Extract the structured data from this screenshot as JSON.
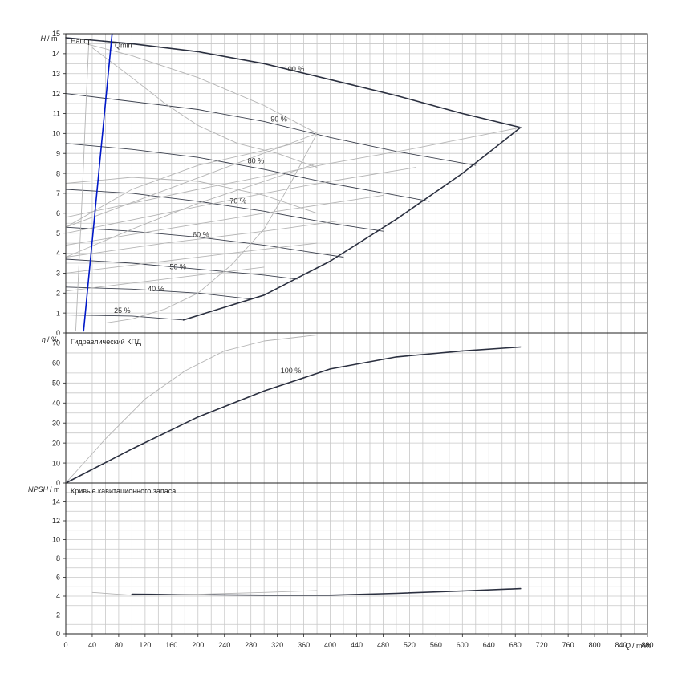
{
  "chart_data": [
    {
      "type": "line",
      "title": "Напор",
      "ylabel_symbol": "H",
      "ylabel_unit": "/ m",
      "xlim": [
        0,
        880
      ],
      "ylim": [
        0,
        15
      ],
      "yticks": [
        0,
        1,
        2,
        3,
        4,
        5,
        6,
        7,
        8,
        9,
        10,
        11,
        12,
        13,
        14,
        15
      ],
      "grid": true,
      "colors": {
        "main": "#2b3040",
        "sub": "#3a3f4c",
        "light": "#b4b4b4",
        "qmin": "#0018c8"
      },
      "series": [
        {
          "name": "100 %",
          "style": "main",
          "x": [
            0,
            100,
            200,
            300,
            400,
            500,
            600,
            688
          ],
          "y": [
            14.8,
            14.5,
            14.1,
            13.5,
            12.7,
            11.9,
            11.0,
            10.3
          ]
        },
        {
          "name": "90 %",
          "style": "sub",
          "x": [
            0,
            100,
            200,
            300,
            400,
            500,
            620
          ],
          "y": [
            12.0,
            11.6,
            11.2,
            10.6,
            9.8,
            9.1,
            8.4
          ]
        },
        {
          "name": "80 %",
          "style": "sub",
          "x": [
            0,
            100,
            200,
            300,
            400,
            500,
            550
          ],
          "y": [
            9.5,
            9.2,
            8.8,
            8.2,
            7.5,
            6.9,
            6.6
          ]
        },
        {
          "name": "70 %",
          "style": "sub",
          "x": [
            0,
            100,
            200,
            300,
            400,
            480
          ],
          "y": [
            7.2,
            7.0,
            6.6,
            6.1,
            5.5,
            5.1
          ]
        },
        {
          "name": "60 %",
          "style": "sub",
          "x": [
            0,
            100,
            200,
            300,
            420
          ],
          "y": [
            5.3,
            5.1,
            4.8,
            4.4,
            3.8
          ]
        },
        {
          "name": "50 %",
          "style": "sub",
          "x": [
            0,
            100,
            200,
            300,
            350
          ],
          "y": [
            3.7,
            3.5,
            3.2,
            2.9,
            2.7
          ]
        },
        {
          "name": "40 %",
          "style": "sub",
          "x": [
            0,
            100,
            200,
            280
          ],
          "y": [
            2.3,
            2.2,
            2.0,
            1.7
          ]
        },
        {
          "name": "25 %",
          "style": "sub",
          "x": [
            0,
            100,
            178
          ],
          "y": [
            0.9,
            0.85,
            0.65
          ]
        },
        {
          "name": "",
          "style": "main",
          "x": [
            178,
            300,
            400,
            500,
            600,
            688
          ],
          "y": [
            0.65,
            1.9,
            3.6,
            5.7,
            8.0,
            10.3
          ]
        },
        {
          "name": "",
          "style": "light",
          "x": [
            30,
            100,
            200,
            300,
            380
          ],
          "y": [
            14.5,
            13.9,
            12.8,
            11.4,
            10.0
          ]
        },
        {
          "name": "",
          "style": "light",
          "x": [
            380,
            340,
            300,
            250,
            200,
            150,
            100,
            60
          ],
          "y": [
            10.0,
            7.5,
            5.2,
            3.4,
            2.0,
            1.2,
            0.7,
            0.5
          ]
        },
        {
          "name": "",
          "style": "light",
          "x": [
            35,
            30,
            25,
            20,
            15
          ],
          "y": [
            14.7,
            11.0,
            7.0,
            3.5,
            0.1
          ]
        },
        {
          "name": "",
          "style": "light",
          "x": [
            0,
            380
          ],
          "y": [
            5.3,
            10.0
          ]
        },
        {
          "name": "",
          "style": "light",
          "x": [
            0,
            200,
            400,
            520,
            688
          ],
          "y": [
            5.8,
            7.2,
            8.5,
            9.2,
            10.3
          ]
        },
        {
          "name": "",
          "style": "light",
          "x": [
            0,
            150,
            300,
            400,
            530
          ],
          "y": [
            5.0,
            6.0,
            7.0,
            7.6,
            8.3
          ]
        },
        {
          "name": "",
          "style": "light",
          "x": [
            0,
            150,
            300,
            420,
            480
          ],
          "y": [
            4.4,
            5.2,
            6.0,
            6.6,
            6.9
          ]
        },
        {
          "name": "",
          "style": "light",
          "x": [
            0,
            150,
            300,
            410
          ],
          "y": [
            3.8,
            4.5,
            5.1,
            5.6
          ]
        },
        {
          "name": "",
          "style": "light",
          "x": [
            0,
            150,
            300,
            380
          ],
          "y": [
            3.0,
            3.6,
            4.2,
            4.5
          ]
        },
        {
          "name": "",
          "style": "light",
          "x": [
            0,
            100,
            200,
            300
          ],
          "y": [
            2.1,
            2.5,
            2.9,
            3.3
          ]
        },
        {
          "name": "",
          "style": "light",
          "x": [
            0,
            100,
            200,
            360
          ],
          "y": [
            5.3,
            7.2,
            8.4,
            9.6
          ]
        },
        {
          "name": "",
          "style": "light",
          "x": [
            0,
            100,
            200,
            300,
            380
          ],
          "y": [
            3.8,
            5.2,
            6.5,
            7.6,
            8.5
          ]
        },
        {
          "name": "",
          "style": "light",
          "x": [
            0,
            100,
            200,
            300,
            380
          ],
          "y": [
            7.5,
            7.8,
            7.6,
            6.9,
            6.0
          ]
        },
        {
          "name": "",
          "style": "light",
          "x": [
            40,
            100,
            150,
            200,
            260,
            320,
            380
          ],
          "y": [
            14.3,
            12.8,
            11.5,
            10.4,
            9.5,
            9.0,
            8.3
          ]
        },
        {
          "name": "Qmin",
          "style": "qmin",
          "x": [
            27,
            70
          ],
          "y": [
            0.1,
            15.0
          ]
        }
      ],
      "curve_labels": [
        {
          "text": "100 %",
          "x": 330,
          "y": 13.1
        },
        {
          "text": "90 %",
          "x": 310,
          "y": 10.6
        },
        {
          "text": "80 %",
          "x": 275,
          "y": 8.5
        },
        {
          "text": "70 %",
          "x": 248,
          "y": 6.5
        },
        {
          "text": "60 %",
          "x": 192,
          "y": 4.8
        },
        {
          "text": "50 %",
          "x": 157,
          "y": 3.2
        },
        {
          "text": "40 %",
          "x": 124,
          "y": 2.1
        },
        {
          "text": "25 %",
          "x": 73,
          "y": 1.0
        },
        {
          "text": "Qmin",
          "x": 74,
          "y": 14.3
        }
      ]
    },
    {
      "type": "line",
      "title": "Гидравлический КПД",
      "ylabel_symbol": "η",
      "ylabel_unit": "/ %",
      "xlim": [
        0,
        880
      ],
      "ylim": [
        0,
        75
      ],
      "yticks": [
        0,
        10,
        20,
        30,
        40,
        50,
        60,
        70
      ],
      "grid": true,
      "series": [
        {
          "name": "100 %",
          "style": "main",
          "x": [
            0,
            100,
            200,
            300,
            400,
            500,
            600,
            688
          ],
          "y": [
            0,
            17,
            33,
            46,
            57,
            63,
            66,
            68
          ]
        },
        {
          "name": "",
          "style": "light",
          "x": [
            0,
            60,
            120,
            180,
            240,
            300,
            380
          ],
          "y": [
            0,
            22,
            42,
            56,
            66,
            71,
            74
          ]
        }
      ],
      "curve_labels": [
        {
          "text": "100 %",
          "x": 325,
          "y": 55
        }
      ]
    },
    {
      "type": "line",
      "title": "Кривые кавитационного запаса",
      "ylabel_symbol": "NPSH",
      "ylabel_unit": "/ m",
      "xlabel_symbol": "Q",
      "xlabel_unit": "/ m³/h",
      "xlim": [
        0,
        880
      ],
      "ylim": [
        0,
        16
      ],
      "yticks": [
        0,
        2,
        4,
        6,
        8,
        10,
        12,
        14
      ],
      "xticks": [
        0,
        40,
        80,
        120,
        160,
        200,
        240,
        280,
        320,
        360,
        400,
        440,
        480,
        520,
        560,
        600,
        640,
        680,
        720,
        760,
        800,
        840,
        880
      ],
      "grid": true,
      "series": [
        {
          "name": "",
          "style": "main",
          "x": [
            100,
            200,
            300,
            400,
            500,
            600,
            688
          ],
          "y": [
            4.2,
            4.15,
            4.1,
            4.1,
            4.3,
            4.55,
            4.8
          ]
        },
        {
          "name": "",
          "style": "light",
          "x": [
            40,
            100,
            200,
            300,
            380
          ],
          "y": [
            4.4,
            4.1,
            4.2,
            4.4,
            4.6
          ]
        }
      ],
      "curve_labels": []
    }
  ]
}
